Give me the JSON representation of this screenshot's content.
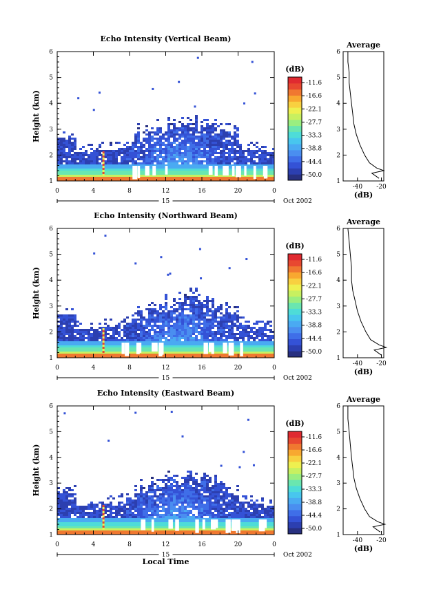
{
  "chart_data": [
    {
      "type": "heatmap",
      "title": "Echo Intensity (Vertical Beam)",
      "ylabel": "Height (km)",
      "ylim": [
        1,
        6
      ],
      "yticks": [
        "1",
        "2",
        "3",
        "4",
        "5",
        "6"
      ],
      "xlim": [
        0,
        24
      ],
      "xticks": [
        "0",
        "4",
        "8",
        "12",
        "16",
        "20",
        "0"
      ],
      "day_label": "15",
      "date_label": "Oct 2002",
      "colorbar_unit": "(dB)",
      "colorbar_ticks": [
        "-11.6",
        "-16.6",
        "-22.1",
        "-27.7",
        "-33.3",
        "-38.8",
        "-44.4",
        "-50.0"
      ],
      "profile": {
        "title": "Average",
        "xlabel": "(dB)",
        "xticks": [
          "-40",
          "-20"
        ],
        "points": [
          [
            -48,
            6.0
          ],
          [
            -48,
            5.6
          ],
          [
            -47,
            5.2
          ],
          [
            -47,
            4.8
          ],
          [
            -46,
            4.4
          ],
          [
            -45,
            4.0
          ],
          [
            -44,
            3.6
          ],
          [
            -43,
            3.2
          ],
          [
            -41,
            2.8
          ],
          [
            -38,
            2.4
          ],
          [
            -34,
            2.0
          ],
          [
            -30,
            1.7
          ],
          [
            -24,
            1.5
          ],
          [
            -18,
            1.4
          ],
          [
            -28,
            1.3
          ],
          [
            -22,
            1.1
          ]
        ]
      }
    },
    {
      "type": "heatmap",
      "title": "Echo Intensity (Northward Beam)",
      "ylabel": "Height (km)",
      "ylim": [
        1,
        6
      ],
      "yticks": [
        "1",
        "2",
        "3",
        "4",
        "5",
        "6"
      ],
      "xlim": [
        0,
        24
      ],
      "xticks": [
        "0",
        "4",
        "8",
        "12",
        "16",
        "20",
        "0"
      ],
      "day_label": "15",
      "date_label": "Oct 2002",
      "colorbar_unit": "(dB)",
      "colorbar_ticks": [
        "-11.6",
        "-16.6",
        "-22.1",
        "-27.7",
        "-33.3",
        "-38.8",
        "-44.4",
        "-50.0"
      ],
      "profile": {
        "title": "Average",
        "xlabel": "(dB)",
        "xticks": [
          "-40",
          "-20"
        ],
        "points": [
          [
            -48,
            6.0
          ],
          [
            -47,
            5.5
          ],
          [
            -46,
            5.0
          ],
          [
            -45,
            4.5
          ],
          [
            -45,
            4.0
          ],
          [
            -44,
            3.6
          ],
          [
            -42,
            3.2
          ],
          [
            -40,
            2.8
          ],
          [
            -37,
            2.4
          ],
          [
            -33,
            2.0
          ],
          [
            -29,
            1.7
          ],
          [
            -22,
            1.5
          ],
          [
            -16,
            1.4
          ],
          [
            -26,
            1.3
          ],
          [
            -20,
            1.1
          ]
        ]
      }
    },
    {
      "type": "heatmap",
      "title": "Echo Intensity (Eastward Beam)",
      "ylabel": "Height (km)",
      "xlabel": "Local Time",
      "ylim": [
        1,
        6
      ],
      "yticks": [
        "1",
        "2",
        "3",
        "4",
        "5",
        "6"
      ],
      "xlim": [
        0,
        24
      ],
      "xticks": [
        "0",
        "4",
        "8",
        "12",
        "16",
        "20",
        "0"
      ],
      "day_label": "15",
      "date_label": "Oct 2002",
      "colorbar_unit": "(dB)",
      "colorbar_ticks": [
        "-11.6",
        "-16.6",
        "-22.1",
        "-27.7",
        "-33.3",
        "-38.8",
        "-44.4",
        "-50.0"
      ],
      "profile": {
        "title": "Average",
        "xlabel": "(dB)",
        "xticks": [
          "-40",
          "-20"
        ],
        "points": [
          [
            -48,
            6.0
          ],
          [
            -48,
            5.5
          ],
          [
            -47,
            5.0
          ],
          [
            -46,
            4.5
          ],
          [
            -45,
            4.0
          ],
          [
            -44,
            3.6
          ],
          [
            -43,
            3.2
          ],
          [
            -41,
            2.8
          ],
          [
            -38,
            2.4
          ],
          [
            -34,
            2.0
          ],
          [
            -30,
            1.7
          ],
          [
            -23,
            1.5
          ],
          [
            -17,
            1.4
          ],
          [
            -27,
            1.3
          ],
          [
            -21,
            1.1
          ]
        ]
      }
    }
  ],
  "palette": [
    "#283080",
    "#2c3fb0",
    "#3452d6",
    "#3f6ee8",
    "#4a8ef0",
    "#4aaaf2",
    "#48c6ee",
    "#4edcd8",
    "#6ae6b0",
    "#9aee80",
    "#c8f060",
    "#eef050",
    "#f8d040",
    "#f8a830",
    "#f07830",
    "#e84830",
    "#e02a30"
  ]
}
